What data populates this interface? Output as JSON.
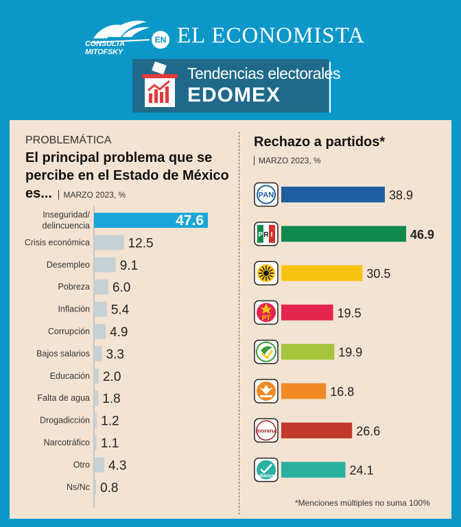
{
  "header": {
    "partner_name": "CONSULTA MITOFSKY",
    "connector": "EN",
    "brand": "EL ECONOMISTA",
    "section_line1": "Tendencias electorales",
    "section_line2": "EDOMEX"
  },
  "colors": {
    "frame": "#0b98c9",
    "background": "#f3e3d3",
    "highlight_bar": "#1aa6d9",
    "bar": "#c7d1d4"
  },
  "chart_data": [
    {
      "type": "bar",
      "orientation": "horizontal",
      "kicker": "PROBLEMÁTICA",
      "title": "El principal problema que se percibe en el Estado de México es...",
      "subtitle": "MARZO 2023, %",
      "categories": [
        "Inseguridad/\ndelincuencia",
        "Crisis económica",
        "Desempleo",
        "Pobreza",
        "Inflación",
        "Corrupción",
        "Bajos salarios",
        "Educación",
        "Falta de agua",
        "Drogadicción",
        "Narcotráfico",
        "Otro",
        "Ns/Nc"
      ],
      "values": [
        47.6,
        12.5,
        9.1,
        6.0,
        5.4,
        4.9,
        3.3,
        2.0,
        1.8,
        1.2,
        1.1,
        4.3,
        0.8
      ],
      "value_labels": [
        "47.6",
        "12.5",
        "9.1",
        "6.0",
        "5.4",
        "4.9",
        "3.3",
        "2.0",
        "1.8",
        "1.2",
        "1.1",
        "4.3",
        "0.8"
      ],
      "highlight_index": 0,
      "xlim": [
        0,
        47.6
      ],
      "grid": false
    },
    {
      "type": "bar",
      "orientation": "horizontal",
      "title": "Rechazo a partidos*",
      "subtitle": "MARZO 2023, %",
      "categories": [
        "PAN",
        "PRI",
        "PRD",
        "PT",
        "PVEM",
        "MC",
        "morena",
        "alianza"
      ],
      "values": [
        38.9,
        46.9,
        30.5,
        19.5,
        19.9,
        16.8,
        26.6,
        24.1
      ],
      "value_labels": [
        "38.9",
        "46.9",
        "30.5",
        "19.5",
        "19.9",
        "16.8",
        "26.6",
        "24.1"
      ],
      "bar_colors": [
        "#1f5fa0",
        "#0f8a4c",
        "#f7c313",
        "#e5264c",
        "#a6c43c",
        "#f08a24",
        "#c0392b",
        "#2bb0a0"
      ],
      "bold_index": 1,
      "xlim": [
        0,
        46.9
      ],
      "grid": false,
      "footnote": "*Menciones múltiples no suma 100%"
    }
  ]
}
